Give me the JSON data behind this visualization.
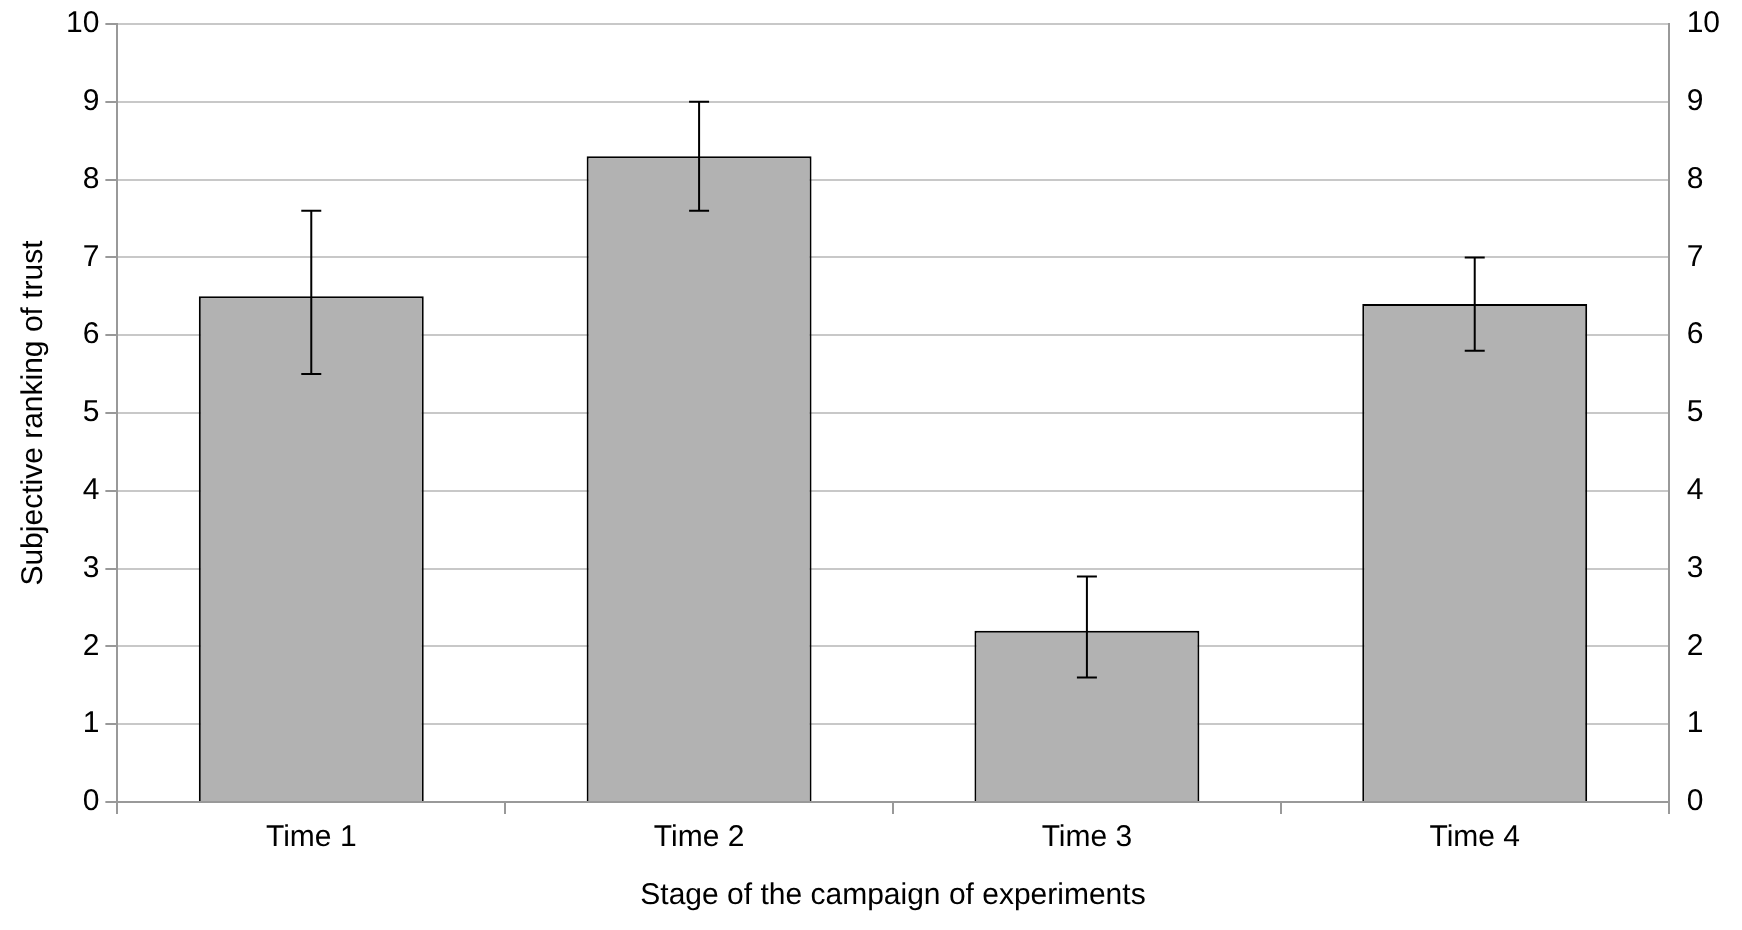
{
  "chart_data": {
    "type": "bar",
    "xlabel": "Stage of the campaign of experiments",
    "ylabel": "Subjective ranking of trust",
    "categories": [
      "Time 1",
      "Time 2",
      "Time 3",
      "Time 4"
    ],
    "values": [
      6.5,
      8.3,
      2.2,
      6.4
    ],
    "errors": [
      [
        5.5,
        7.6
      ],
      [
        7.6,
        9.0
      ],
      [
        1.6,
        2.9
      ],
      [
        5.8,
        7.0
      ]
    ],
    "color": "#b2b2b2",
    "ylim": [
      0,
      10
    ],
    "yticks": [
      0,
      1,
      2,
      3,
      4,
      5,
      6,
      7,
      8,
      9,
      10
    ],
    "y2lim": [
      0,
      10
    ],
    "y2ticks": [
      0,
      1,
      2,
      3,
      4,
      5,
      6,
      7,
      8,
      9,
      10
    ],
    "grid": "y"
  }
}
